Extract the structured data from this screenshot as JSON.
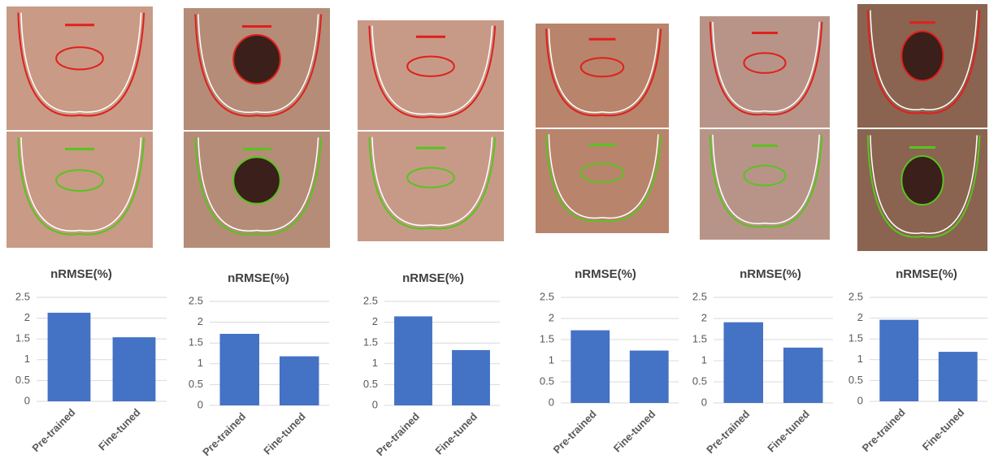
{
  "chart_data": [
    {
      "type": "bar",
      "title": "nRMSE(%)",
      "categories": [
        "Pre-trained",
        "Fine-tuned"
      ],
      "values": [
        2.13,
        1.54
      ],
      "color": "#4472c4",
      "ylim": [
        0,
        2.5
      ],
      "yticks": [
        0,
        0.5,
        1,
        1.5,
        2,
        2.5
      ],
      "grid": true
    },
    {
      "type": "bar",
      "title": "nRMSE(%)",
      "categories": [
        "Pre-trained",
        "Fine-tuned"
      ],
      "values": [
        1.72,
        1.18
      ],
      "color": "#4472c4",
      "ylim": [
        0,
        2.5
      ],
      "yticks": [
        0,
        0.5,
        1,
        1.5,
        2,
        2.5
      ],
      "grid": true
    },
    {
      "type": "bar",
      "title": "nRMSE(%)",
      "categories": [
        "Pre-trained",
        "Fine-tuned"
      ],
      "values": [
        2.14,
        1.33
      ],
      "color": "#4472c4",
      "ylim": [
        0,
        2.5
      ],
      "yticks": [
        0,
        0.5,
        1,
        1.5,
        2,
        2.5
      ],
      "grid": true
    },
    {
      "type": "bar",
      "title": "nRMSE(%)",
      "categories": [
        "Pre-trained",
        "Fine-tuned"
      ],
      "values": [
        1.72,
        1.24
      ],
      "color": "#4472c4",
      "ylim": [
        0,
        2.5
      ],
      "yticks": [
        0,
        0.5,
        1,
        1.5,
        2,
        2.5
      ],
      "grid": true
    },
    {
      "type": "bar",
      "title": "nRMSE(%)",
      "categories": [
        "Pre-trained",
        "Fine-tuned"
      ],
      "values": [
        1.91,
        1.31
      ],
      "color": "#4472c4",
      "ylim": [
        0,
        2.5
      ],
      "yticks": [
        0,
        0.5,
        1,
        1.5,
        2,
        2.5
      ],
      "grid": true
    },
    {
      "type": "bar",
      "title": "nRMSE(%)",
      "categories": [
        "Pre-trained",
        "Fine-tuned"
      ],
      "values": [
        1.96,
        1.19
      ],
      "color": "#4472c4",
      "ylim": [
        0,
        2.5
      ],
      "yticks": [
        0,
        0.5,
        1,
        1.5,
        2,
        2.5
      ],
      "grid": true
    }
  ]
}
